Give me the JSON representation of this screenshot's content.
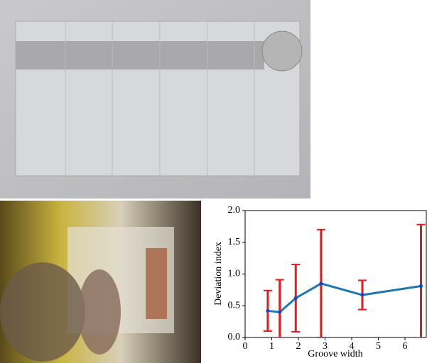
{
  "chart_data": {
    "type": "line",
    "x_label": "Groove width",
    "y_label": "Deviation index",
    "x": [
      0.85,
      1.3,
      1.9,
      2.85,
      4.4,
      6.6
    ],
    "series": [
      {
        "color": "#1f77b4",
        "error_color": "#e8191c",
        "values": [
          0.42,
          0.4,
          0.62,
          0.85,
          0.67,
          0.81
        ],
        "errors": [
          0.32,
          0.51,
          0.53,
          0.85,
          0.23,
          0.97
        ]
      }
    ],
    "xlim": [
      0,
      6.8
    ],
    "xticks": [
      0,
      1,
      2,
      3,
      4,
      5,
      6
    ],
    "ylim": [
      0,
      2.0
    ],
    "yticks": [
      {
        "value": 0,
        "label": "0.0"
      },
      {
        "value": 0.5,
        "label": "0.5"
      },
      {
        "value": 1,
        "label": "1.0"
      },
      {
        "value": 1.5,
        "label": "1.5"
      },
      {
        "value": 2,
        "label": "2.0"
      }
    ]
  }
}
